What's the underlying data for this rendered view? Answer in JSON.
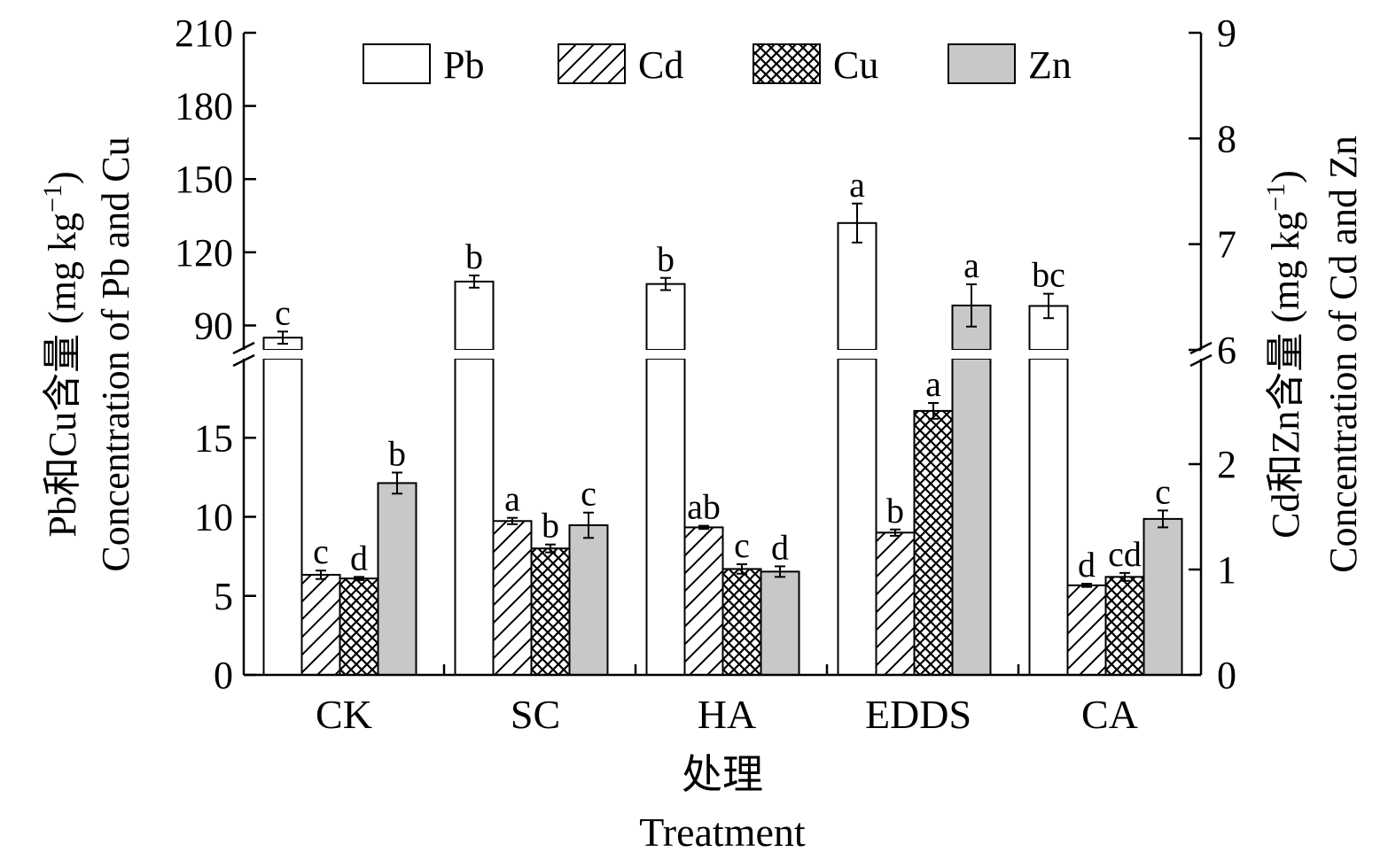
{
  "chart_data": {
    "type": "bar",
    "categories": [
      "CK",
      "SC",
      "HA",
      "EDDS",
      "CA"
    ],
    "series": [
      {
        "name": "Pb",
        "axis": "left",
        "values": [
          85,
          108,
          107,
          132,
          98
        ],
        "errors": [
          2.5,
          2.5,
          2.5,
          8,
          5
        ],
        "letters": [
          "c",
          "b",
          "b",
          "a",
          "bc"
        ],
        "pattern": "white"
      },
      {
        "name": "Cd",
        "axis": "right",
        "values": [
          0.95,
          1.46,
          1.4,
          1.35,
          0.85
        ],
        "errors": [
          0.04,
          0.03,
          0.015,
          0.03,
          0.015
        ],
        "letters": [
          "c",
          "a",
          "ab",
          "b",
          "d"
        ],
        "pattern": "diagonal-hatch"
      },
      {
        "name": "Cu",
        "axis": "left",
        "values": [
          6.1,
          8,
          6.7,
          16.7,
          6.2
        ],
        "errors": [
          0.1,
          0.25,
          0.3,
          0.5,
          0.25
        ],
        "letters": [
          "d",
          "b",
          "c",
          "a",
          "cd"
        ],
        "pattern": "cross-hatch"
      },
      {
        "name": "Zn",
        "axis": "right",
        "values": [
          1.82,
          1.42,
          0.98,
          6.42,
          1.48
        ],
        "errors": [
          0.1,
          0.12,
          0.05,
          0.2,
          0.08
        ],
        "letters": [
          "b",
          "c",
          "d",
          "a",
          "c"
        ],
        "pattern": "gray"
      }
    ],
    "left_axis": {
      "label_cn": "Pb和Cu含量 (mg kg",
      "label_en": "Concentration of Pb and Cu",
      "break": true,
      "lower_range": [
        0,
        20
      ],
      "lower_ticks": [
        "0",
        "5",
        "10",
        "15"
      ],
      "upper_range": [
        80,
        210
      ],
      "upper_ticks": [
        "90",
        "120",
        "150",
        "180",
        "210"
      ]
    },
    "right_axis": {
      "label_cn": "Cd和Zn含量 (mg kg",
      "label_en": "Concentration of Cd and Zn",
      "break": true,
      "lower_range": [
        0,
        3
      ],
      "lower_ticks": [
        "0",
        "1",
        "2"
      ],
      "upper_range": [
        6,
        9
      ],
      "upper_ticks": [
        "6",
        "7",
        "8",
        "9"
      ]
    },
    "unit_superscript": "−1",
    "unit_close": ")",
    "xlabel_cn": "处理",
    "xlabel_en": "Treatment",
    "legend_position": "top-center",
    "grid": false,
    "colors": {
      "bar_outline": "#000000",
      "zn_fill": "#c8c8c8",
      "white_fill": "#ffffff"
    }
  }
}
